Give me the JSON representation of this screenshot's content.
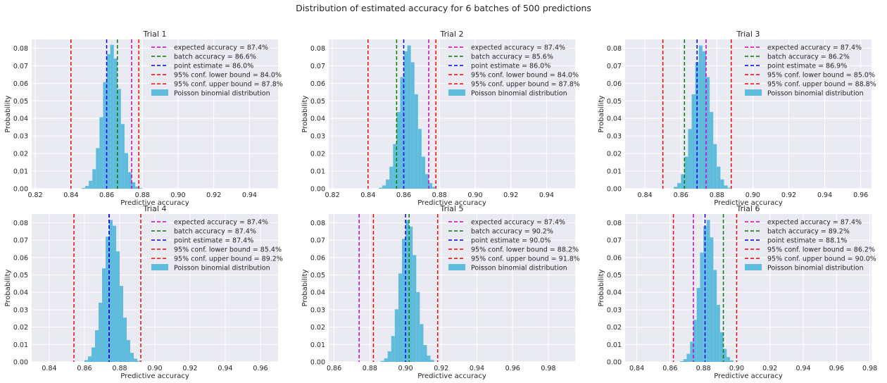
{
  "figure": {
    "suptitle": "Distribution of estimated accuracy for 6 batches of 500 predictions"
  },
  "style": {
    "background": "#eaeaf2",
    "grid": "#ffffff",
    "bar_color": "#5fbcdc",
    "expected_color": "#cc00cc",
    "batch_color": "#008000",
    "point_color": "#0000ff",
    "bound_color": "#ff0000"
  },
  "chart_data": [
    {
      "type": "bar",
      "title": "Trial 1",
      "xlabel": "Predictive accuracy",
      "ylabel": "Probability",
      "xlim": [
        0.818,
        0.956
      ],
      "ylim": [
        0,
        0.085
      ],
      "xticks": [
        0.82,
        0.84,
        0.86,
        0.88,
        0.9,
        0.92,
        0.94
      ],
      "xtick_labels": [
        "0.82",
        "0.84",
        "0.86",
        "0.88",
        "0.90",
        "0.92",
        "0.94"
      ],
      "yticks": [
        0,
        0.01,
        0.02,
        0.03,
        0.04,
        0.05,
        0.06,
        0.07,
        0.08
      ],
      "ytick_labels": [
        "0.00",
        "0.01",
        "0.02",
        "0.03",
        "0.04",
        "0.05",
        "0.06",
        "0.07",
        "0.08"
      ],
      "distribution": {
        "mean": 0.8628,
        "sd": 0.0049,
        "bin_width": 0.002,
        "min": 0.822,
        "max": 0.898
      },
      "lines": [
        {
          "label": "expected accuracy = 87.4%",
          "x": 0.874,
          "color": "#cc00cc"
        },
        {
          "label": "batch accuracy = 86.6%",
          "x": 0.866,
          "color": "#008000"
        },
        {
          "label": "point estimate = 86.0%",
          "x": 0.86,
          "color": "#0000ff"
        },
        {
          "label": "95% conf. lower bound = 84.0%",
          "x": 0.84,
          "color": "#ff0000"
        },
        {
          "label": "95% conf. upper bound = 87.8%",
          "x": 0.878,
          "color": "#ff0000"
        }
      ],
      "bar_label": "Poisson binomial distribution",
      "legend": "upper right"
    },
    {
      "type": "bar",
      "title": "Trial 2",
      "xlabel": "Predictive accuracy",
      "ylabel": "Probability",
      "xlim": [
        0.818,
        0.956
      ],
      "ylim": [
        0,
        0.085
      ],
      "xticks": [
        0.82,
        0.84,
        0.86,
        0.88,
        0.9,
        0.92,
        0.94
      ],
      "xtick_labels": [
        "0.82",
        "0.84",
        "0.86",
        "0.88",
        "0.90",
        "0.92",
        "0.94"
      ],
      "yticks": [
        0,
        0.01,
        0.02,
        0.03,
        0.04,
        0.05,
        0.06,
        0.07,
        0.08
      ],
      "ytick_labels": [
        "0.00",
        "0.01",
        "0.02",
        "0.03",
        "0.04",
        "0.05",
        "0.06",
        "0.07",
        "0.08"
      ],
      "distribution": {
        "mean": 0.8625,
        "sd": 0.0049,
        "bin_width": 0.002,
        "min": 0.822,
        "max": 0.898
      },
      "lines": [
        {
          "label": "expected accuracy = 87.4%",
          "x": 0.874,
          "color": "#cc00cc"
        },
        {
          "label": "batch accuracy = 85.6%",
          "x": 0.856,
          "color": "#008000"
        },
        {
          "label": "point estimate = 86.0%",
          "x": 0.86,
          "color": "#0000ff"
        },
        {
          "label": "95% conf. lower bound = 84.0%",
          "x": 0.84,
          "color": "#ff0000"
        },
        {
          "label": "95% conf. upper bound = 87.8%",
          "x": 0.878,
          "color": "#ff0000"
        }
      ],
      "bar_label": "Poisson binomial distribution",
      "legend": "upper right"
    },
    {
      "type": "bar",
      "title": "Trial 3",
      "xlabel": "Predictive accuracy",
      "ylabel": "Probability",
      "xlim": [
        0.829,
        0.966
      ],
      "ylim": [
        0,
        0.085
      ],
      "xticks": [
        0.84,
        0.86,
        0.88,
        0.9,
        0.92,
        0.94,
        0.96
      ],
      "xtick_labels": [
        "0.84",
        "0.86",
        "0.88",
        "0.90",
        "0.92",
        "0.94",
        "0.96"
      ],
      "yticks": [
        0,
        0.01,
        0.02,
        0.03,
        0.04,
        0.05,
        0.06,
        0.07,
        0.08
      ],
      "ytick_labels": [
        "0.00",
        "0.01",
        "0.02",
        "0.03",
        "0.04",
        "0.05",
        "0.06",
        "0.07",
        "0.08"
      ],
      "distribution": {
        "mean": 0.8715,
        "sd": 0.0049,
        "bin_width": 0.002,
        "min": 0.834,
        "max": 0.906
      },
      "lines": [
        {
          "label": "expected accuracy = 87.4%",
          "x": 0.874,
          "color": "#cc00cc"
        },
        {
          "label": "batch accuracy = 86.2%",
          "x": 0.862,
          "color": "#008000"
        },
        {
          "label": "point estimate = 86.9%",
          "x": 0.869,
          "color": "#0000ff"
        },
        {
          "label": "95% conf. lower bound = 85.0%",
          "x": 0.85,
          "color": "#ff0000"
        },
        {
          "label": "95% conf. upper bound = 88.8%",
          "x": 0.888,
          "color": "#ff0000"
        }
      ],
      "bar_label": "Poisson binomial distribution",
      "legend": "upper right"
    },
    {
      "type": "bar",
      "title": "Trial 4",
      "xlabel": "Predictive accuracy",
      "ylabel": "Probability",
      "xlim": [
        0.83,
        0.97
      ],
      "ylim": [
        0,
        0.085
      ],
      "xticks": [
        0.84,
        0.86,
        0.88,
        0.9,
        0.92,
        0.94,
        0.96
      ],
      "xtick_labels": [
        "0.84",
        "0.86",
        "0.88",
        "0.90",
        "0.92",
        "0.94",
        "0.96"
      ],
      "yticks": [
        0,
        0.01,
        0.02,
        0.03,
        0.04,
        0.05,
        0.06,
        0.07,
        0.08
      ],
      "ytick_labels": [
        "0.00",
        "0.01",
        "0.02",
        "0.03",
        "0.04",
        "0.05",
        "0.06",
        "0.07",
        "0.08"
      ],
      "distribution": {
        "mean": 0.8755,
        "sd": 0.0049,
        "bin_width": 0.002,
        "min": 0.836,
        "max": 0.912
      },
      "lines": [
        {
          "label": "expected accuracy = 87.4%",
          "x": 0.874,
          "color": "#cc00cc"
        },
        {
          "label": "batch accuracy = 87.4%",
          "x": 0.874,
          "color": "#008000"
        },
        {
          "label": "point estimate = 87.4%",
          "x": 0.874,
          "color": "#0000ff"
        },
        {
          "label": "95% conf. lower bound = 85.4%",
          "x": 0.854,
          "color": "#ff0000"
        },
        {
          "label": "95% conf. upper bound = 89.2%",
          "x": 0.892,
          "color": "#ff0000"
        }
      ],
      "bar_label": "Poisson binomial distribution",
      "legend": "upper right"
    },
    {
      "type": "bar",
      "title": "Trial 5",
      "xlabel": "Predictive accuracy",
      "ylabel": "Probability",
      "xlim": [
        0.857,
        0.995
      ],
      "ylim": [
        0,
        0.085
      ],
      "xticks": [
        0.86,
        0.88,
        0.9,
        0.92,
        0.94,
        0.96,
        0.98
      ],
      "xtick_labels": [
        "0.86",
        "0.88",
        "0.90",
        "0.92",
        "0.94",
        "0.96",
        "0.98"
      ],
      "yticks": [
        0,
        0.01,
        0.02,
        0.03,
        0.04,
        0.05,
        0.06,
        0.07,
        0.08
      ],
      "ytick_labels": [
        "0.00",
        "0.01",
        "0.02",
        "0.03",
        "0.04",
        "0.05",
        "0.06",
        "0.07",
        "0.08"
      ],
      "distribution": {
        "mean": 0.9015,
        "sd": 0.0046,
        "bin_width": 0.002,
        "min": 0.866,
        "max": 0.932
      },
      "lines": [
        {
          "label": "expected accuracy = 87.4%",
          "x": 0.874,
          "color": "#cc00cc"
        },
        {
          "label": "batch accuracy = 90.2%",
          "x": 0.902,
          "color": "#008000"
        },
        {
          "label": "point estimate = 90.0%",
          "x": 0.9,
          "color": "#0000ff"
        },
        {
          "label": "95% conf. lower bound = 88.2%",
          "x": 0.882,
          "color": "#ff0000"
        },
        {
          "label": "95% conf. upper bound = 91.8%",
          "x": 0.918,
          "color": "#ff0000"
        }
      ],
      "bar_label": "Poisson binomial distribution",
      "legend": "upper right"
    },
    {
      "type": "bar",
      "title": "Trial 6",
      "xlabel": "Predictive accuracy",
      "ylabel": "Probability",
      "xlim": [
        0.833,
        0.981
      ],
      "ylim": [
        0,
        0.085
      ],
      "xticks": [
        0.84,
        0.86,
        0.88,
        0.9,
        0.92,
        0.94,
        0.96,
        0.98
      ],
      "xtick_labels": [
        "0.84",
        "0.86",
        "0.88",
        "0.90",
        "0.92",
        "0.94",
        "0.96",
        "0.98"
      ],
      "yticks": [
        0,
        0.01,
        0.02,
        0.03,
        0.04,
        0.05,
        0.06,
        0.07,
        0.08
      ],
      "ytick_labels": [
        "0.00",
        "0.01",
        "0.02",
        "0.03",
        "0.04",
        "0.05",
        "0.06",
        "0.07",
        "0.08"
      ],
      "distribution": {
        "mean": 0.8825,
        "sd": 0.0048,
        "bin_width": 0.002,
        "min": 0.844,
        "max": 0.916
      },
      "lines": [
        {
          "label": "expected accuracy = 87.4%",
          "x": 0.874,
          "color": "#cc00cc"
        },
        {
          "label": "batch accuracy = 89.2%",
          "x": 0.892,
          "color": "#008000"
        },
        {
          "label": "point estimate = 88.1%",
          "x": 0.881,
          "color": "#0000ff"
        },
        {
          "label": "95% conf. lower bound = 86.2%",
          "x": 0.862,
          "color": "#ff0000"
        },
        {
          "label": "95% conf. upper bound = 90.0%",
          "x": 0.9,
          "color": "#ff0000"
        }
      ],
      "bar_label": "Poisson binomial distribution",
      "legend": "upper right"
    }
  ]
}
